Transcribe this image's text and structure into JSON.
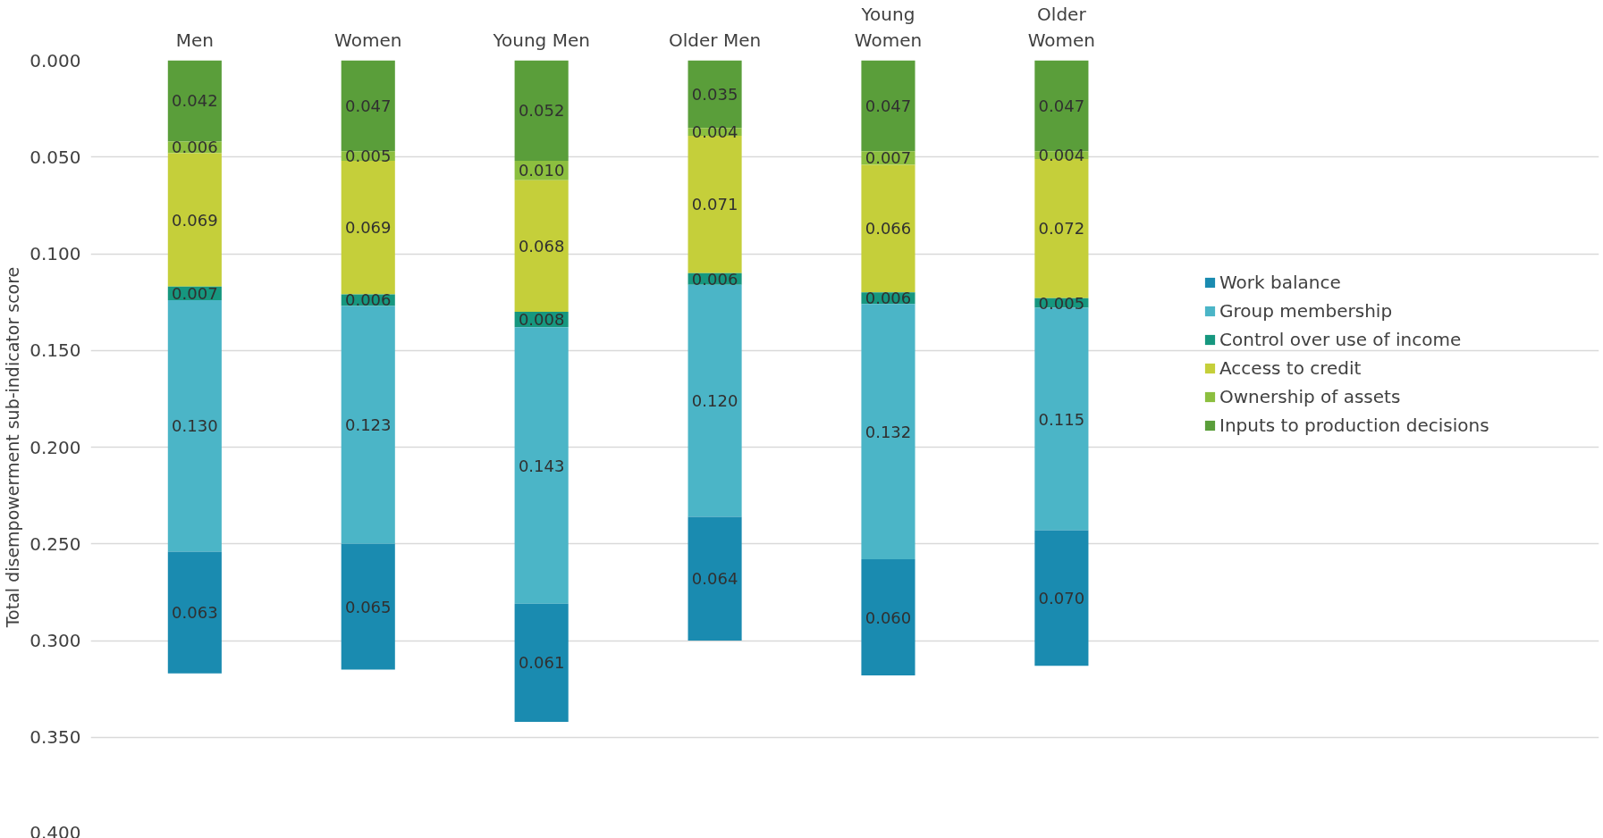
{
  "chart_data": {
    "type": "bar",
    "stacked": true,
    "ylabel": "Total disempowerment sub-indicator score",
    "categories": [
      "Men",
      "Women",
      "Young Men",
      "Older Men",
      "Young Women",
      "Older Women"
    ],
    "series": [
      {
        "name": "Inputs to production decisions",
        "color": "#5a9e3a",
        "values": [
          0.042,
          0.047,
          0.052,
          0.035,
          0.047,
          0.047
        ],
        "value_labels": [
          "0.042",
          "0.047",
          "0.052",
          "0.035",
          "0.047",
          "0.047"
        ]
      },
      {
        "name": "Ownership of assets",
        "color": "#8cbf3f",
        "values": [
          0.006,
          0.005,
          0.01,
          0.004,
          0.007,
          0.004
        ],
        "value_labels": [
          "0.006",
          "0.005",
          "0.010",
          "0.004",
          "0.007",
          "0.004"
        ]
      },
      {
        "name": "Access to credit",
        "color": "#c5cf3a",
        "values": [
          0.069,
          0.069,
          0.068,
          0.071,
          0.066,
          0.072
        ],
        "value_labels": [
          "0.069",
          "0.069",
          "0.068",
          "0.071",
          "0.066",
          "0.072"
        ]
      },
      {
        "name": "Control over use of income",
        "color": "#16977f",
        "values": [
          0.007,
          0.006,
          0.008,
          0.006,
          0.006,
          0.005
        ],
        "value_labels": [
          "0.007",
          "0.006",
          "0.008",
          "0.006",
          "0.006",
          "0.005"
        ]
      },
      {
        "name": "Group membership",
        "color": "#4bb5c7",
        "values": [
          0.13,
          0.123,
          0.143,
          0.12,
          0.132,
          0.115
        ],
        "value_labels": [
          "0.130",
          "0.123",
          "0.143",
          "0.120",
          "0.132",
          "0.115"
        ]
      },
      {
        "name": "Work balance",
        "color": "#1a8bb0",
        "values": [
          0.063,
          0.065,
          0.061,
          0.064,
          0.06,
          0.07
        ],
        "value_labels": [
          "0.063",
          "0.065",
          "0.061",
          "0.064",
          "0.060",
          "0.070"
        ]
      }
    ],
    "ylim": [
      0.4,
      0.0
    ],
    "yticks": [
      {
        "value": 0,
        "label": "0.000"
      },
      {
        "value": 0.05,
        "label": "0.050"
      },
      {
        "value": 0.1,
        "label": "0.100"
      },
      {
        "value": 0.15,
        "label": "0.150"
      },
      {
        "value": 0.2,
        "label": "0.200"
      },
      {
        "value": 0.25,
        "label": "0.250"
      },
      {
        "value": 0.3,
        "label": "0.300"
      },
      {
        "value": 0.35,
        "label": "0.350"
      },
      {
        "value": 0.4,
        "label": "0.400"
      }
    ],
    "grid": "y",
    "legend": "right"
  }
}
